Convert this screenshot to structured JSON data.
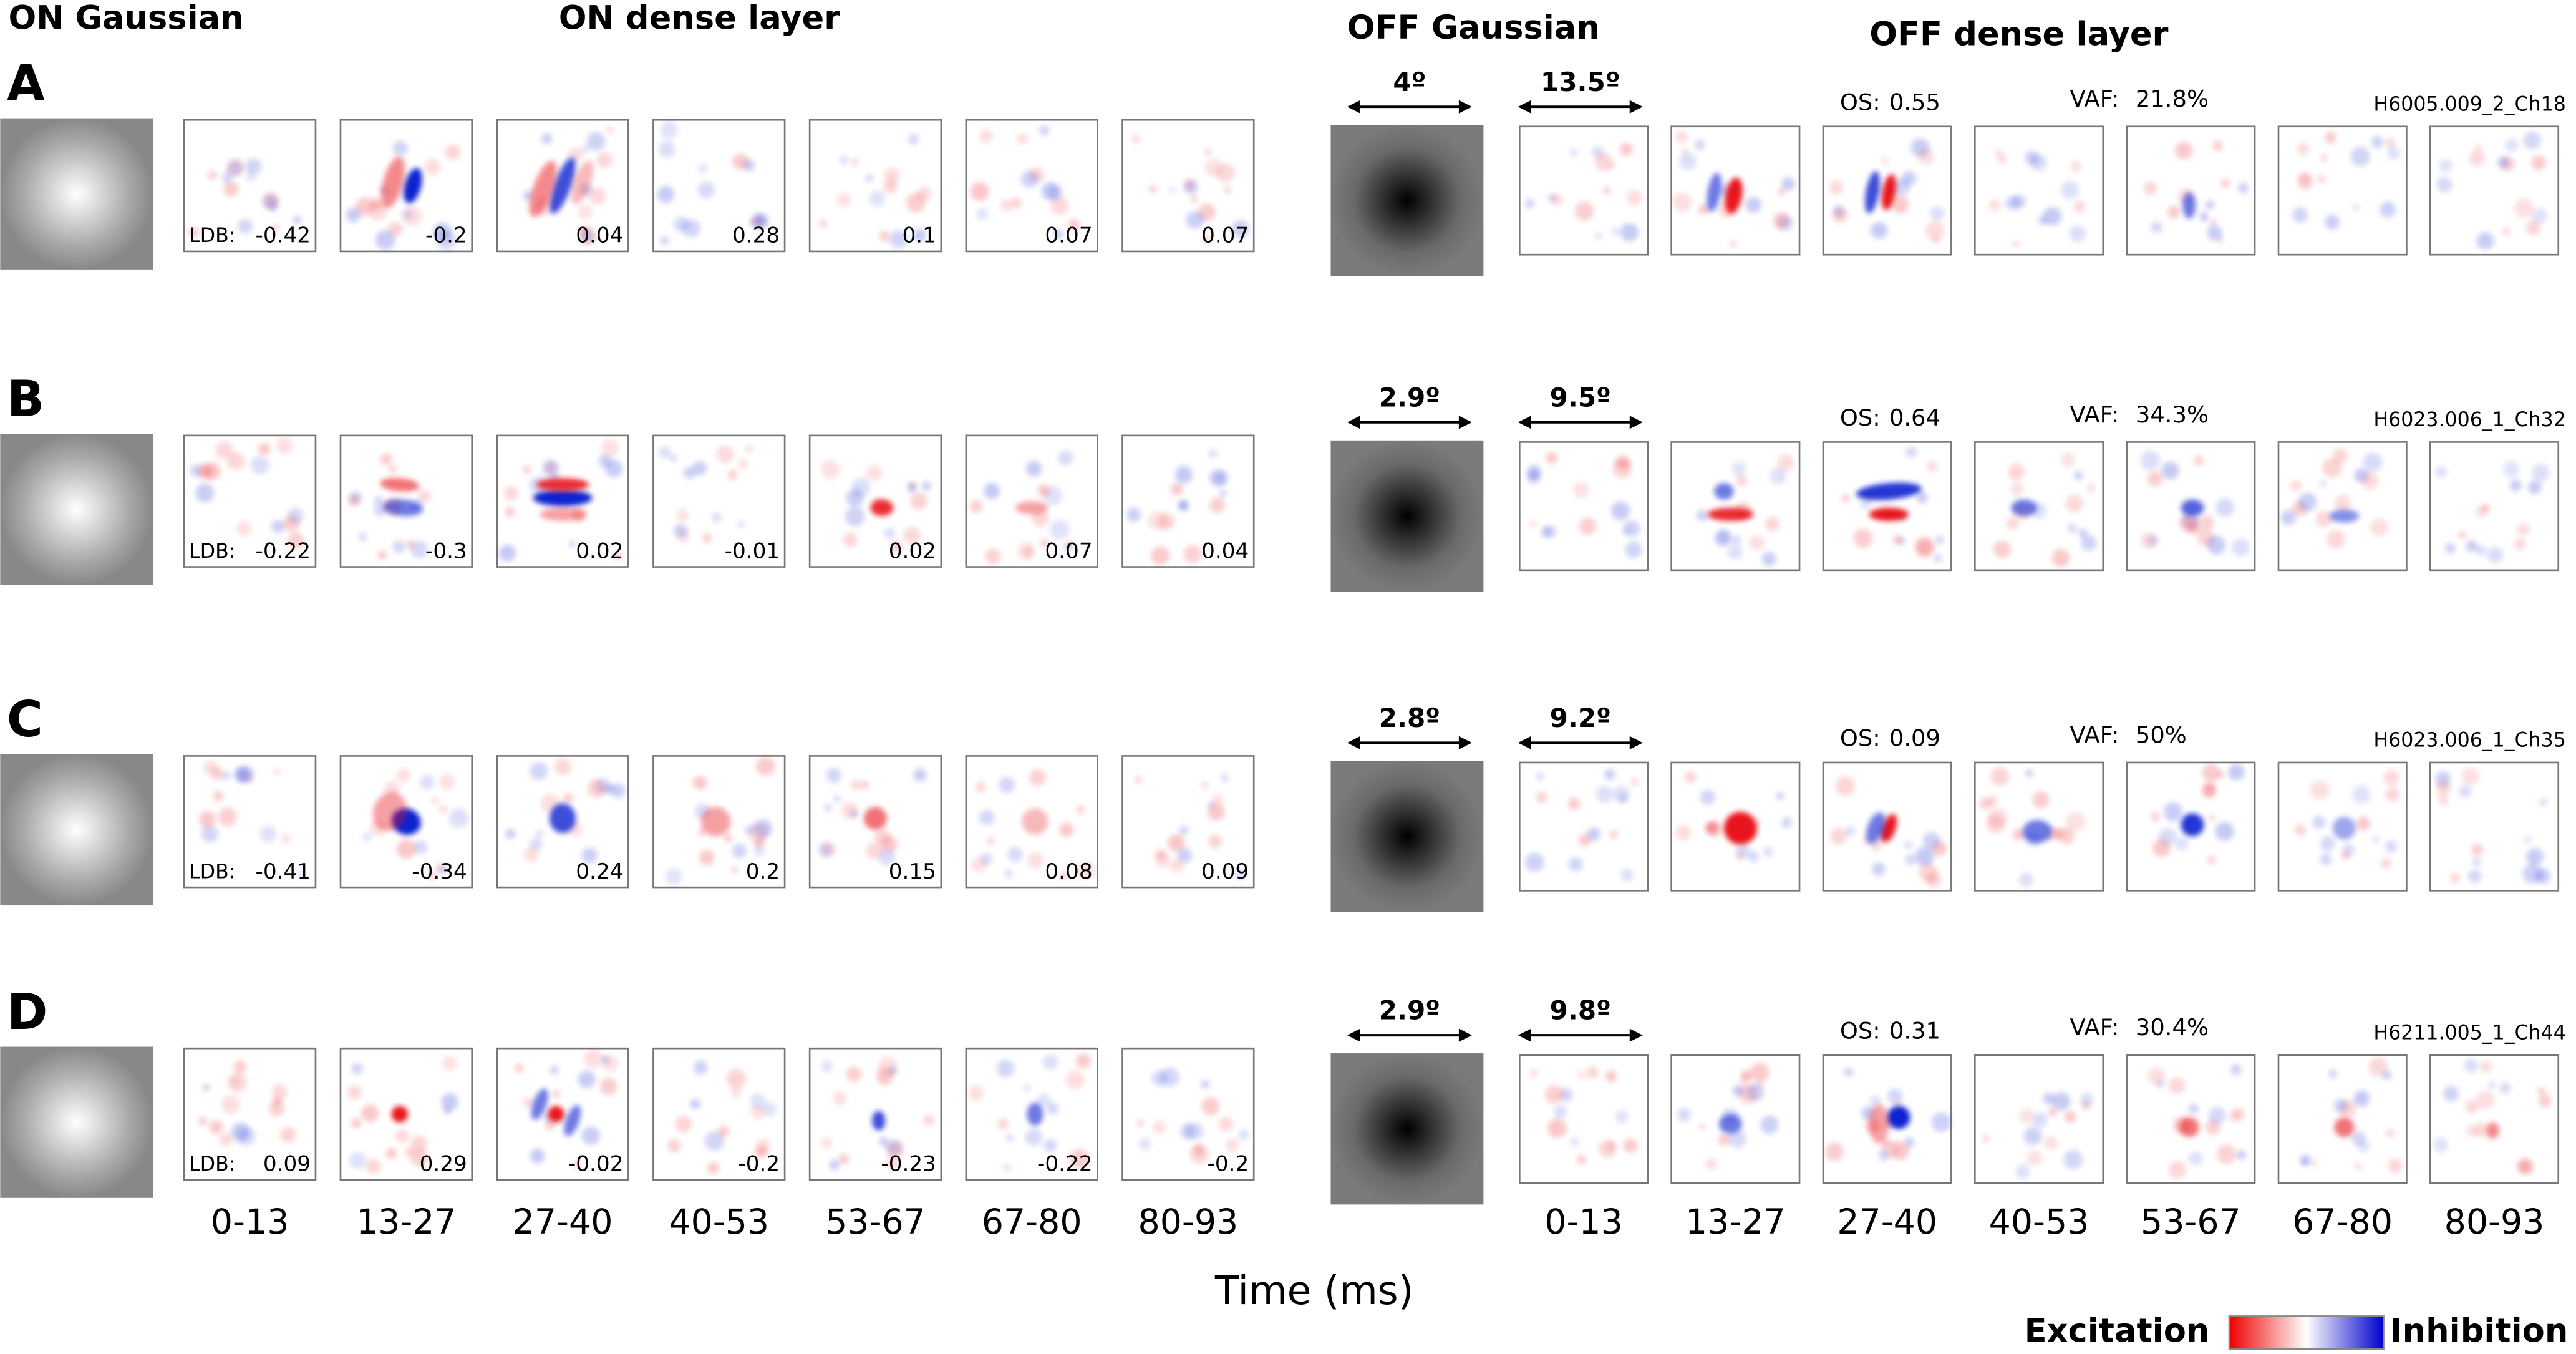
{
  "headers": {
    "on_gaussian": "ON Gaussian",
    "on_dense": "ON dense layer",
    "off_gaussian": "OFF Gaussian",
    "off_dense": "OFF dense layer"
  },
  "rows": [
    {
      "letter": "A",
      "ldb_label": "LDB:",
      "ldb": [
        "-0.42",
        "-0.2",
        "0.04",
        "0.28",
        "0.1",
        "0.07",
        "0.07"
      ],
      "off_gaussian_size": "4º",
      "off_dense_size": "13.5º",
      "os_label": "OS:",
      "os": "0.55",
      "vaf_label": "VAF:",
      "vaf": "21.8%",
      "cell": "H6005.009_2_Ch18"
    },
    {
      "letter": "B",
      "ldb_label": "LDB:",
      "ldb": [
        "-0.22",
        "-0.3",
        "0.02",
        "-0.01",
        "0.02",
        "0.07",
        "0.04"
      ],
      "off_gaussian_size": "2.9º",
      "off_dense_size": "9.5º",
      "os_label": "OS:",
      "os": "0.64",
      "vaf_label": "VAF:",
      "vaf": "34.3%",
      "cell": "H6023.006_1_Ch32"
    },
    {
      "letter": "C",
      "ldb_label": "LDB:",
      "ldb": [
        "-0.41",
        "-0.34",
        "0.24",
        "0.2",
        "0.15",
        "0.08",
        "0.09"
      ],
      "off_gaussian_size": "2.8º",
      "off_dense_size": "9.2º",
      "os_label": "OS:",
      "os": "0.09",
      "vaf_label": "VAF:",
      "vaf": "50%",
      "cell": "H6023.006_1_Ch35"
    },
    {
      "letter": "D",
      "ldb_label": "LDB:",
      "ldb": [
        "0.09",
        "0.29",
        "-0.02",
        "-0.2",
        "-0.23",
        "-0.22",
        "-0.2"
      ],
      "off_gaussian_size": "2.9º",
      "off_dense_size": "9.8º",
      "os_label": "OS:",
      "os": "0.31",
      "vaf_label": "VAF:",
      "vaf": "30.4%",
      "cell": "H6211.005_1_Ch44"
    }
  ],
  "time_bins": [
    "0-13",
    "13-27",
    "27-40",
    "40-53",
    "53-67",
    "67-80",
    "80-93"
  ],
  "x_label": "Time (ms)",
  "legend": {
    "excitation": "Excitation",
    "inhibition": "Inhibition"
  }
}
